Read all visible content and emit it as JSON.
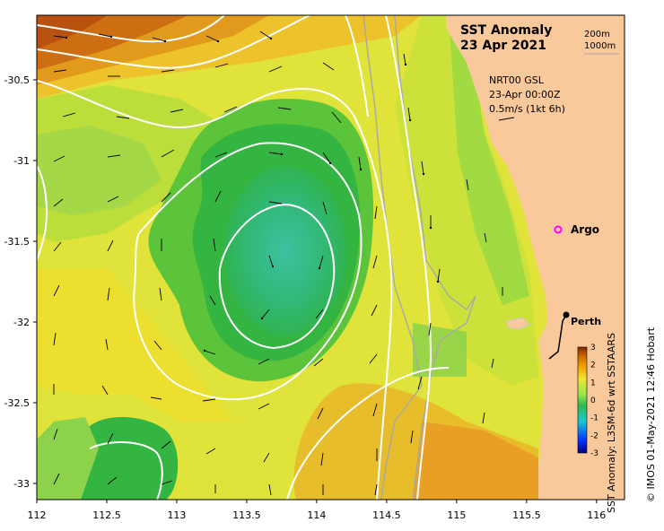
{
  "title": {
    "line1": "SST Anomaly",
    "line2": "23 Apr 2021"
  },
  "depth_legend": [
    "200m",
    "1000m"
  ],
  "product_info": {
    "line1": "NRT00 GSL",
    "line2": "23-Apr 00:00Z",
    "line3": "0.5m/s (1kt 6h)"
  },
  "places": {
    "argo": "Argo",
    "perth": "Perth"
  },
  "colorbar": {
    "label": "SST Anomaly: L3SM-6d wrt SSTAARS",
    "ticks": [
      "3",
      "2",
      "1",
      "0",
      "-1",
      "-2",
      "-3"
    ],
    "range": [
      -3,
      3
    ],
    "colors": [
      "#00007f",
      "#0033ff",
      "#19c8d2",
      "#30b850",
      "#96e650",
      "#f0e630",
      "#f0a000",
      "#c86400",
      "#7f2a00"
    ]
  },
  "credit": "© IMOS 01-May-2021 12:46 Hobart",
  "axes": {
    "x_ticks": [
      "112",
      "112.5",
      "113",
      "113.5",
      "114",
      "114.5",
      "115",
      "115.5",
      "116"
    ],
    "x_values": [
      112,
      112.5,
      113,
      113.5,
      114,
      114.5,
      115,
      115.5,
      116
    ],
    "y_ticks": [
      "-30.5",
      "-31",
      "-31.5",
      "-32",
      "-32.5",
      "-33"
    ],
    "y_values": [
      -30.5,
      -31,
      -31.5,
      -32,
      -32.5,
      -33
    ],
    "lon_range": [
      112,
      116.2
    ],
    "lat_range": [
      -33.1,
      -30.1
    ]
  },
  "colors": {
    "land": "#f9c99b",
    "contour": "#ffffff",
    "bathymetry": "#a0a0a0",
    "argo_marker": "#ff00ff"
  }
}
